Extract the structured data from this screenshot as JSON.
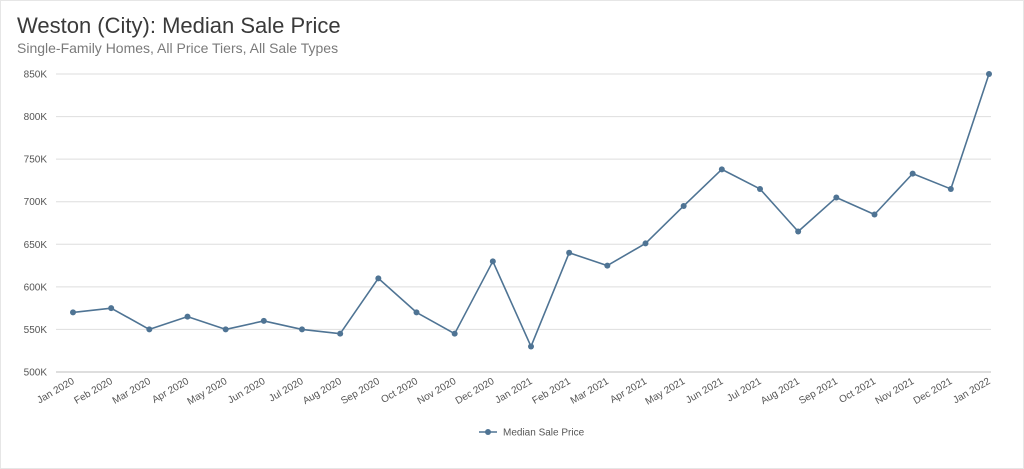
{
  "header": {
    "title": "Weston (City): Median Sale Price",
    "subtitle": "Single-Family Homes, All Price Tiers, All Sale Types"
  },
  "colors": {
    "series": "#4f7494",
    "grid": "#dedede",
    "axis": "#bdbdbd"
  },
  "chart_data": {
    "type": "line",
    "title": "Weston (City): Median Sale Price",
    "subtitle": "Single-Family Homes, All Price Tiers, All Sale Types",
    "xlabel": "",
    "ylabel": "",
    "ylim": [
      500000,
      850000
    ],
    "yticks": [
      500000,
      550000,
      600000,
      650000,
      700000,
      750000,
      800000,
      850000
    ],
    "ytick_labels": [
      "500K",
      "550K",
      "600K",
      "650K",
      "700K",
      "750K",
      "800K",
      "850K"
    ],
    "grid": true,
    "legend_position": "bottom-center",
    "categories": [
      "Jan 2020",
      "Feb 2020",
      "Mar 2020",
      "Apr 2020",
      "May 2020",
      "Jun 2020",
      "Jul 2020",
      "Aug 2020",
      "Sep 2020",
      "Oct 2020",
      "Nov 2020",
      "Dec 2020",
      "Jan 2021",
      "Feb 2021",
      "Mar 2021",
      "Apr 2021",
      "May 2021",
      "Jun 2021",
      "Jul 2021",
      "Aug 2021",
      "Sep 2021",
      "Oct 2021",
      "Nov 2021",
      "Dec 2021",
      "Jan 2022"
    ],
    "series": [
      {
        "name": "Median Sale Price",
        "values": [
          570000,
          575000,
          550000,
          565000,
          550000,
          560000,
          550000,
          545000,
          610000,
          570000,
          545000,
          630000,
          530000,
          640000,
          625000,
          651000,
          695000,
          738000,
          715000,
          665000,
          705000,
          685000,
          733000,
          715000,
          850000
        ]
      }
    ]
  }
}
